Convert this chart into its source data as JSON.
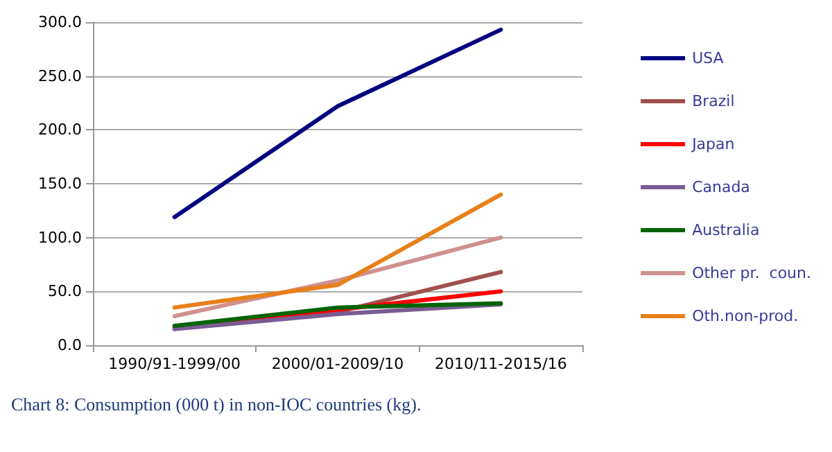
{
  "chart_data": {
    "type": "line",
    "categories": [
      "1990/91-1999/00",
      "2000/01-2009/10",
      "2010/11-2015/16"
    ],
    "series": [
      {
        "name": "USA",
        "color": "#000080",
        "values": [
          119,
          222,
          293
        ]
      },
      {
        "name": "Brazil",
        "color": "#a0504f",
        "values": [
          16,
          31,
          68
        ]
      },
      {
        "name": "Japan",
        "color": "#ff0000",
        "values": [
          17,
          33,
          50
        ]
      },
      {
        "name": "Canada",
        "color": "#7a5c94",
        "values": [
          15,
          29,
          38
        ]
      },
      {
        "name": "Australia",
        "color": "#006400",
        "values": [
          18,
          35,
          39
        ]
      },
      {
        "name": "Other pr.  coun.",
        "color": "#d09090",
        "values": [
          27,
          60,
          100
        ]
      },
      {
        "name": "Oth.non-prod.",
        "color": "#e8801a",
        "values": [
          35,
          56,
          140
        ]
      }
    ],
    "ylim": [
      0,
      300
    ],
    "yticks": [
      {
        "value": 0,
        "label": "0.0"
      },
      {
        "value": 50,
        "label": "50.0"
      },
      {
        "value": 100,
        "label": "100.0"
      },
      {
        "value": 150,
        "label": "150.0"
      },
      {
        "value": 200,
        "label": "200.0"
      },
      {
        "value": 250,
        "label": "250.0"
      },
      {
        "value": 300,
        "label": "300.0"
      }
    ],
    "grid": "y",
    "legend": "right",
    "marker": "none",
    "line_style": "solid",
    "annotations": [
      "Chart 8: Consumption (000 t) in non-IOC countries (kg)."
    ]
  }
}
